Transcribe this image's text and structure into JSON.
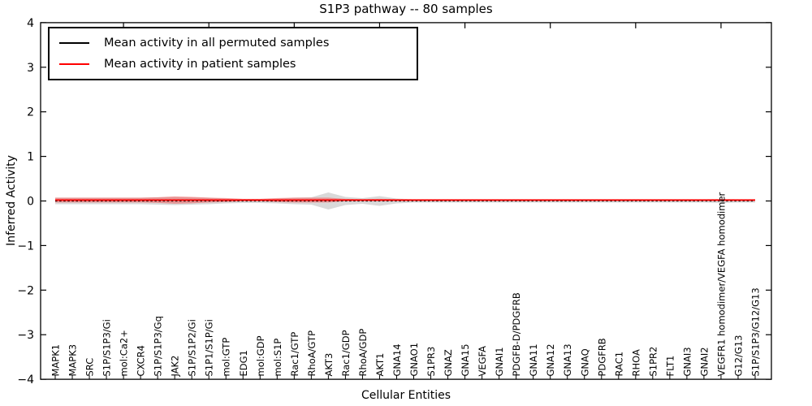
{
  "figure": {
    "title": "S1P3 pathway -- 80 samples",
    "xlabel": "Cellular Entities",
    "ylabel": "Inferred Activity"
  },
  "legend": {
    "items": [
      {
        "label": "Mean activity in all permuted samples",
        "color": "#000000"
      },
      {
        "label": "Mean activity in patient samples",
        "color": "#ff0000"
      }
    ]
  },
  "chart_data": {
    "type": "line",
    "title": "S1P3 pathway -- 80 samples",
    "xlabel": "Cellular Entities",
    "ylabel": "Inferred Activity",
    "ylim": [
      -4,
      4
    ],
    "yticks": [
      -4,
      -3,
      -2,
      -1,
      0,
      1,
      2,
      3,
      4
    ],
    "grid": false,
    "legend_position": "upper left",
    "categories": [
      "MAPK1",
      "MAPK3",
      "SRC",
      "S1P/S1P3/Gi",
      "mol:Ca2+",
      "CXCR4",
      "S1P/S1P3/Gq",
      "JAK2",
      "S1P/S1P2/Gi",
      "S1P1/S1P/Gi",
      "mol:GTP",
      "EDG1",
      "mol:GDP",
      "mol:S1P",
      "Rac1/GTP",
      "RhoA/GTP",
      "AKT3",
      "Rac1/GDP",
      "RhoA/GDP",
      "AKT1",
      "GNA14",
      "GNAO1",
      "S1PR3",
      "GNAZ",
      "GNA15",
      "VEGFA",
      "GNAI1",
      "PDGFB-D/PDGFRB",
      "GNA11",
      "GNA12",
      "GNA13",
      "GNAQ",
      "PDGFRB",
      "RAC1",
      "RHOA",
      "S1PR2",
      "FLT1",
      "GNAI3",
      "GNAI2",
      "VEGFR1 homodimer/VEGFA homodimer",
      "G12/G13",
      "S1P/S1P3/G12/G13"
    ],
    "series": [
      {
        "name": "Mean activity in all permuted samples",
        "color": "#000000",
        "style": "dashed",
        "mean": 0.0,
        "band_fill": "rgba(128,128,128,0.30)",
        "sd": [
          0.073,
          0.073,
          0.073,
          0.073,
          0.073,
          0.073,
          0.082,
          0.091,
          0.082,
          0.073,
          0.055,
          0.046,
          0.046,
          0.055,
          0.073,
          0.082,
          0.191,
          0.091,
          0.064,
          0.109,
          0.055,
          0.036,
          0.036,
          0.036,
          0.036,
          0.036,
          0.036,
          0.036,
          0.036,
          0.036,
          0.036,
          0.036,
          0.036,
          0.036,
          0.036,
          0.036,
          0.036,
          0.036,
          0.036,
          0.046,
          0.036,
          0.036
        ]
      },
      {
        "name": "Mean activity in patient samples",
        "color": "#ff0000",
        "style": "solid",
        "mean": 0.02,
        "band_fill": "rgba(255,0,0,0.30)",
        "sd": [
          0.055,
          0.055,
          0.055,
          0.055,
          0.055,
          0.055,
          0.064,
          0.082,
          0.073,
          0.055,
          0.046,
          0.027,
          0.027,
          0.046,
          0.055,
          0.055,
          0.055,
          0.027,
          0.022,
          0.027,
          0.022,
          0.022,
          0.022,
          0.022,
          0.022,
          0.022,
          0.022,
          0.022,
          0.022,
          0.022,
          0.022,
          0.022,
          0.022,
          0.022,
          0.022,
          0.022,
          0.022,
          0.022,
          0.022,
          0.022,
          0.022,
          0.022
        ]
      }
    ]
  }
}
